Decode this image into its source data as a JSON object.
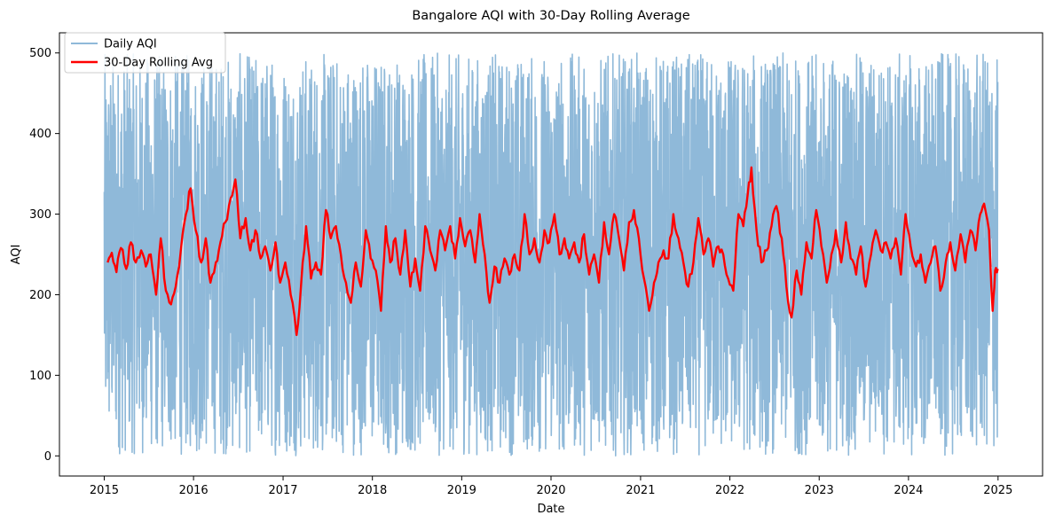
{
  "chart_data": {
    "type": "line",
    "title": "Bangalore AQI with 30-Day Rolling Average",
    "xlabel": "Date",
    "ylabel": "AQI",
    "x_range": [
      "2015-01-01",
      "2024-12-31"
    ],
    "x_axis_padding_days": 183,
    "ylim": [
      -25,
      525
    ],
    "x_ticks": [
      "2015",
      "2016",
      "2017",
      "2018",
      "2019",
      "2020",
      "2021",
      "2022",
      "2023",
      "2024",
      "2025"
    ],
    "y_ticks": [
      0,
      100,
      200,
      300,
      400,
      500
    ],
    "grid": false,
    "legend": {
      "position": "top-left"
    },
    "series": [
      {
        "name": "Daily AQI",
        "color": "#8fb9d9",
        "style": "noisy daily values spanning roughly 0 to 500",
        "range": [
          0,
          500
        ]
      },
      {
        "name": "30-Day Rolling Avg",
        "color": "#ff0000",
        "points": [
          [
            "2015-01-15",
            240
          ],
          [
            "2015-02-01",
            252
          ],
          [
            "2015-02-20",
            228
          ],
          [
            "2015-03-10",
            258
          ],
          [
            "2015-04-01",
            232
          ],
          [
            "2015-04-20",
            265
          ],
          [
            "2015-05-10",
            240
          ],
          [
            "2015-06-01",
            255
          ],
          [
            "2015-06-20",
            235
          ],
          [
            "2015-07-10",
            250
          ],
          [
            "2015-08-01",
            200
          ],
          [
            "2015-08-20",
            270
          ],
          [
            "2015-09-10",
            205
          ],
          [
            "2015-10-01",
            188
          ],
          [
            "2015-10-20",
            210
          ],
          [
            "2015-11-10",
            255
          ],
          [
            "2015-12-01",
            300
          ],
          [
            "2015-12-20",
            332
          ],
          [
            "2016-01-10",
            280
          ],
          [
            "2016-02-01",
            240
          ],
          [
            "2016-02-20",
            270
          ],
          [
            "2016-03-10",
            215
          ],
          [
            "2016-04-01",
            240
          ],
          [
            "2016-04-20",
            265
          ],
          [
            "2016-05-10",
            290
          ],
          [
            "2016-06-01",
            320
          ],
          [
            "2016-06-20",
            343
          ],
          [
            "2016-07-10",
            270
          ],
          [
            "2016-08-01",
            295
          ],
          [
            "2016-08-20",
            255
          ],
          [
            "2016-09-10",
            280
          ],
          [
            "2016-10-01",
            245
          ],
          [
            "2016-10-20",
            260
          ],
          [
            "2016-11-10",
            230
          ],
          [
            "2016-12-01",
            265
          ],
          [
            "2016-12-20",
            215
          ],
          [
            "2017-01-10",
            240
          ],
          [
            "2017-02-01",
            200
          ],
          [
            "2017-02-25",
            150
          ],
          [
            "2017-03-15",
            210
          ],
          [
            "2017-04-05",
            285
          ],
          [
            "2017-04-25",
            220
          ],
          [
            "2017-05-15",
            240
          ],
          [
            "2017-06-05",
            225
          ],
          [
            "2017-06-25",
            305
          ],
          [
            "2017-07-15",
            270
          ],
          [
            "2017-08-05",
            285
          ],
          [
            "2017-08-25",
            250
          ],
          [
            "2017-09-15",
            215
          ],
          [
            "2017-10-05",
            190
          ],
          [
            "2017-10-25",
            240
          ],
          [
            "2017-11-15",
            210
          ],
          [
            "2017-12-05",
            280
          ],
          [
            "2017-12-25",
            245
          ],
          [
            "2018-01-15",
            230
          ],
          [
            "2018-02-05",
            180
          ],
          [
            "2018-02-25",
            285
          ],
          [
            "2018-03-15",
            240
          ],
          [
            "2018-04-05",
            270
          ],
          [
            "2018-04-25",
            225
          ],
          [
            "2018-05-15",
            280
          ],
          [
            "2018-06-05",
            210
          ],
          [
            "2018-06-25",
            245
          ],
          [
            "2018-07-15",
            205
          ],
          [
            "2018-08-05",
            285
          ],
          [
            "2018-08-25",
            255
          ],
          [
            "2018-09-15",
            230
          ],
          [
            "2018-10-05",
            280
          ],
          [
            "2018-10-25",
            255
          ],
          [
            "2018-11-15",
            285
          ],
          [
            "2018-12-05",
            245
          ],
          [
            "2018-12-25",
            295
          ],
          [
            "2019-01-15",
            260
          ],
          [
            "2019-02-05",
            280
          ],
          [
            "2019-02-25",
            240
          ],
          [
            "2019-03-15",
            300
          ],
          [
            "2019-04-05",
            250
          ],
          [
            "2019-04-25",
            190
          ],
          [
            "2019-05-15",
            235
          ],
          [
            "2019-06-05",
            215
          ],
          [
            "2019-06-25",
            245
          ],
          [
            "2019-07-15",
            225
          ],
          [
            "2019-08-05",
            250
          ],
          [
            "2019-08-25",
            230
          ],
          [
            "2019-09-15",
            300
          ],
          [
            "2019-10-05",
            250
          ],
          [
            "2019-10-25",
            270
          ],
          [
            "2019-11-15",
            240
          ],
          [
            "2019-12-05",
            280
          ],
          [
            "2019-12-25",
            265
          ],
          [
            "2020-01-15",
            300
          ],
          [
            "2020-02-05",
            250
          ],
          [
            "2020-02-25",
            270
          ],
          [
            "2020-03-15",
            245
          ],
          [
            "2020-04-05",
            265
          ],
          [
            "2020-04-25",
            240
          ],
          [
            "2020-05-15",
            275
          ],
          [
            "2020-06-05",
            225
          ],
          [
            "2020-06-25",
            250
          ],
          [
            "2020-07-15",
            215
          ],
          [
            "2020-08-05",
            290
          ],
          [
            "2020-08-25",
            250
          ],
          [
            "2020-09-15",
            300
          ],
          [
            "2020-10-05",
            270
          ],
          [
            "2020-10-25",
            230
          ],
          [
            "2020-11-15",
            290
          ],
          [
            "2020-12-05",
            305
          ],
          [
            "2020-12-25",
            270
          ],
          [
            "2021-01-15",
            220
          ],
          [
            "2021-02-05",
            180
          ],
          [
            "2021-02-25",
            215
          ],
          [
            "2021-03-15",
            240
          ],
          [
            "2021-04-05",
            255
          ],
          [
            "2021-04-25",
            245
          ],
          [
            "2021-05-15",
            300
          ],
          [
            "2021-06-05",
            270
          ],
          [
            "2021-06-25",
            240
          ],
          [
            "2021-07-15",
            210
          ],
          [
            "2021-08-05",
            240
          ],
          [
            "2021-08-25",
            295
          ],
          [
            "2021-09-15",
            250
          ],
          [
            "2021-10-05",
            270
          ],
          [
            "2021-10-25",
            235
          ],
          [
            "2021-11-15",
            260
          ],
          [
            "2021-12-05",
            250
          ],
          [
            "2021-12-25",
            220
          ],
          [
            "2022-01-15",
            205
          ],
          [
            "2022-02-05",
            300
          ],
          [
            "2022-02-25",
            285
          ],
          [
            "2022-03-15",
            325
          ],
          [
            "2022-03-30",
            358
          ],
          [
            "2022-04-20",
            280
          ],
          [
            "2022-05-10",
            240
          ],
          [
            "2022-06-01",
            255
          ],
          [
            "2022-06-20",
            285
          ],
          [
            "2022-07-10",
            310
          ],
          [
            "2022-08-01",
            270
          ],
          [
            "2022-08-20",
            210
          ],
          [
            "2022-09-10",
            172
          ],
          [
            "2022-10-01",
            230
          ],
          [
            "2022-10-20",
            200
          ],
          [
            "2022-11-10",
            265
          ],
          [
            "2022-12-01",
            245
          ],
          [
            "2022-12-20",
            305
          ],
          [
            "2023-01-10",
            260
          ],
          [
            "2023-02-01",
            215
          ],
          [
            "2023-02-20",
            250
          ],
          [
            "2023-03-10",
            280
          ],
          [
            "2023-04-01",
            240
          ],
          [
            "2023-04-20",
            290
          ],
          [
            "2023-05-10",
            245
          ],
          [
            "2023-06-01",
            225
          ],
          [
            "2023-06-20",
            260
          ],
          [
            "2023-07-10",
            210
          ],
          [
            "2023-08-01",
            250
          ],
          [
            "2023-08-20",
            280
          ],
          [
            "2023-09-10",
            255
          ],
          [
            "2023-10-01",
            265
          ],
          [
            "2023-10-20",
            245
          ],
          [
            "2023-11-10",
            270
          ],
          [
            "2023-12-01",
            225
          ],
          [
            "2023-12-20",
            300
          ],
          [
            "2024-01-10",
            260
          ],
          [
            "2024-02-01",
            235
          ],
          [
            "2024-02-20",
            250
          ],
          [
            "2024-03-10",
            215
          ],
          [
            "2024-04-01",
            240
          ],
          [
            "2024-04-20",
            260
          ],
          [
            "2024-05-10",
            205
          ],
          [
            "2024-06-01",
            240
          ],
          [
            "2024-06-20",
            265
          ],
          [
            "2024-07-10",
            230
          ],
          [
            "2024-08-01",
            275
          ],
          [
            "2024-08-20",
            240
          ],
          [
            "2024-09-10",
            280
          ],
          [
            "2024-10-01",
            255
          ],
          [
            "2024-10-20",
            300
          ],
          [
            "2024-11-05",
            313
          ],
          [
            "2024-11-25",
            280
          ],
          [
            "2024-12-10",
            180
          ],
          [
            "2024-12-20",
            230
          ],
          [
            "2024-12-31",
            232
          ]
        ]
      }
    ]
  }
}
